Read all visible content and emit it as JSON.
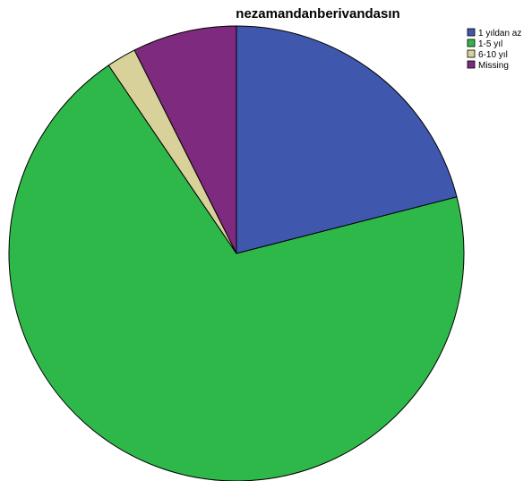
{
  "chart_data": {
    "type": "pie",
    "title": "nezamandanberivandasın",
    "start_angle_deg": 0,
    "direction": "clockwise",
    "legend_position": "top-right",
    "slices": [
      {
        "label": "1 yıldan az",
        "value": 21.0,
        "color": "#3f58ad"
      },
      {
        "label": "1-5 yıl",
        "value": 69.5,
        "color": "#2fb84a"
      },
      {
        "label": "6-10 yıl",
        "value": 2.1,
        "color": "#d9d19a"
      },
      {
        "label": "Missing",
        "value": 7.4,
        "color": "#7e2a7e"
      }
    ]
  }
}
